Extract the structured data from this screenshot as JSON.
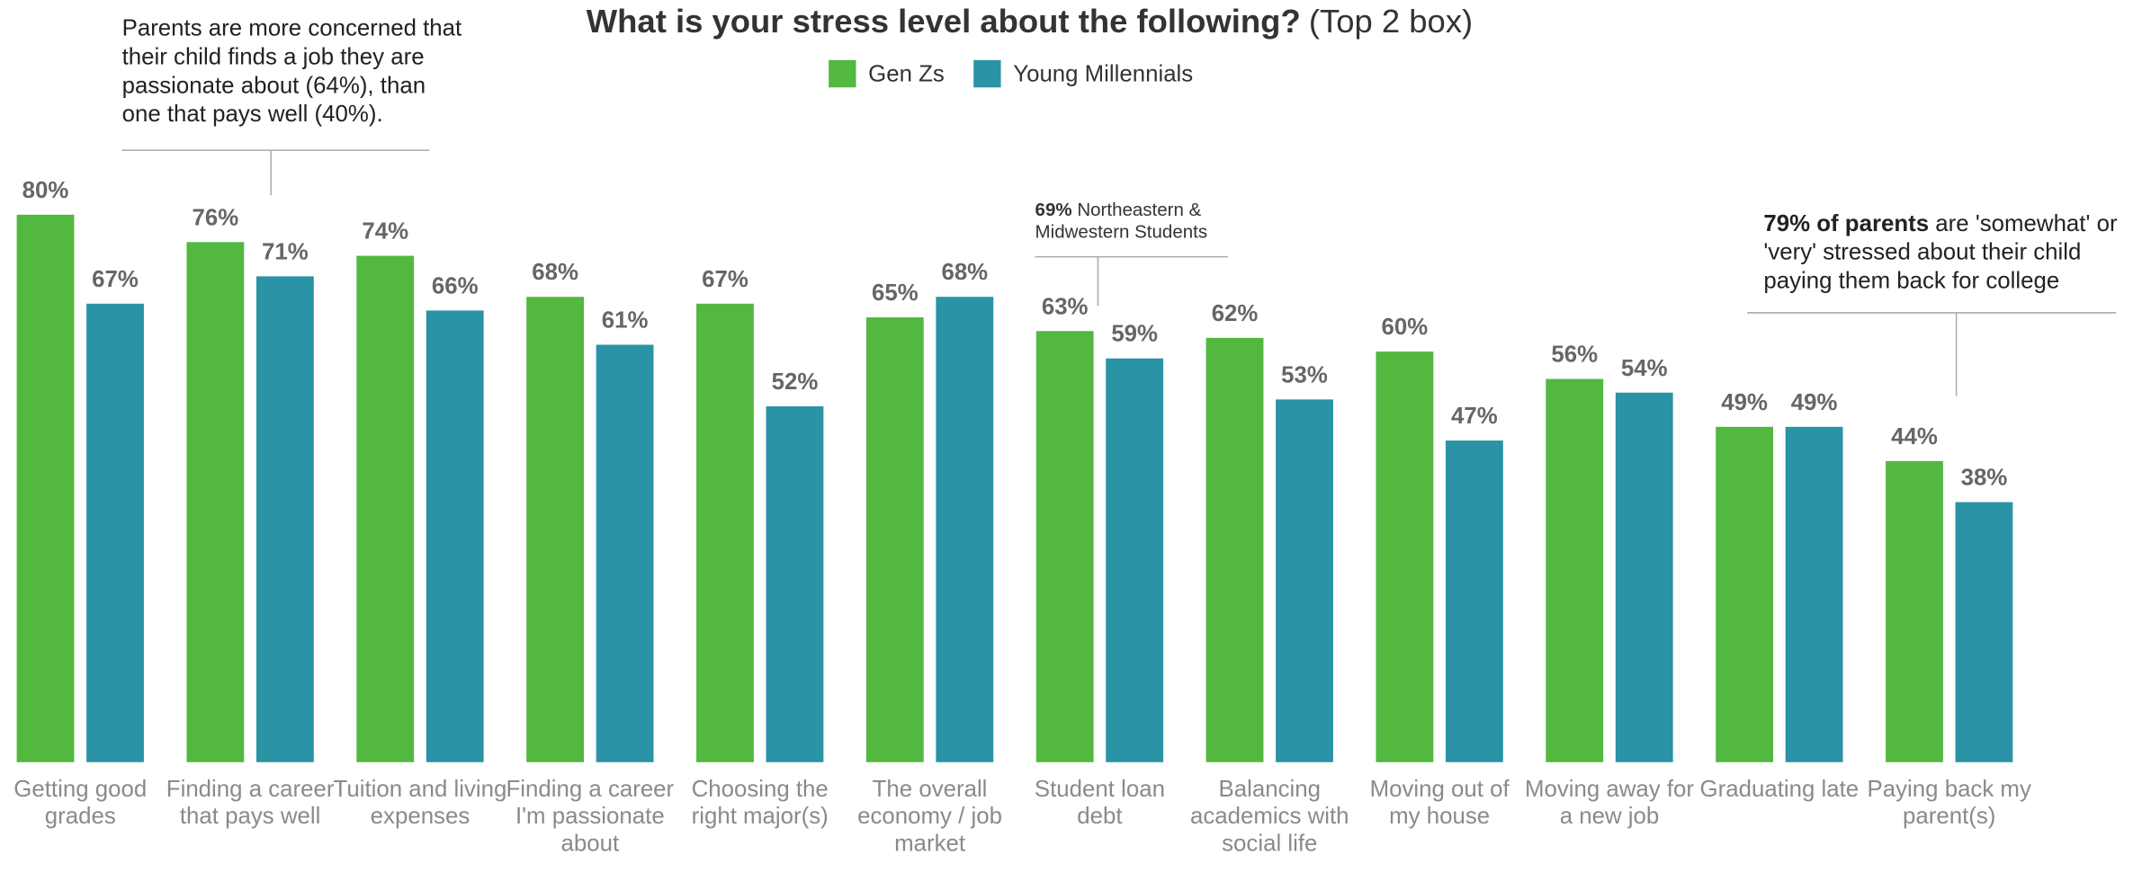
{
  "chart_data": {
    "type": "bar",
    "title": "What is your stress level about the following?",
    "title_note": "(Top 2 box)",
    "categories": [
      "Getting good grades",
      "Finding a career that pays well",
      "Tuition and living expenses",
      "Finding a career I'm passionate about",
      "Choosing the right major(s)",
      "The overall economy / job market",
      "Student loan debt",
      "Balancing academics with social life",
      "Moving out of my house",
      "Moving away for a new job",
      "Graduating late",
      "Paying back my parent(s)"
    ],
    "series": [
      {
        "name": "Gen Zs",
        "color": "#52b83f",
        "values": [
          80,
          76,
          74,
          68,
          67,
          65,
          63,
          62,
          60,
          56,
          49,
          44
        ],
        "value_labels": [
          "80%",
          "76%",
          "74%",
          "68%",
          "67%",
          "65%",
          "63%",
          "62%",
          "60%",
          "56%",
          "49%",
          "44%"
        ]
      },
      {
        "name": "Young Millennials",
        "color": "#2a93a5",
        "values": [
          67,
          71,
          66,
          61,
          52,
          68,
          59,
          53,
          47,
          54,
          49,
          38
        ],
        "value_labels": [
          "67%",
          "71%",
          "66%",
          "61%",
          "52%",
          "68%",
          "59%",
          "53%",
          "47%",
          "54%",
          "49%",
          "38%"
        ]
      }
    ],
    "ylim": [
      0,
      100
    ],
    "legend": "top",
    "annotations": [
      {
        "text": "Parents are more concerned that their child finds a job they are passionate about (64%), than one that pays well (40%)."
      },
      {
        "bold": "69%",
        "text": " Northeastern & Midwestern Students"
      },
      {
        "bold": "79% of parents",
        "text": " are 'somewhat' or 'very' stressed about their child paying them back for college"
      }
    ]
  }
}
